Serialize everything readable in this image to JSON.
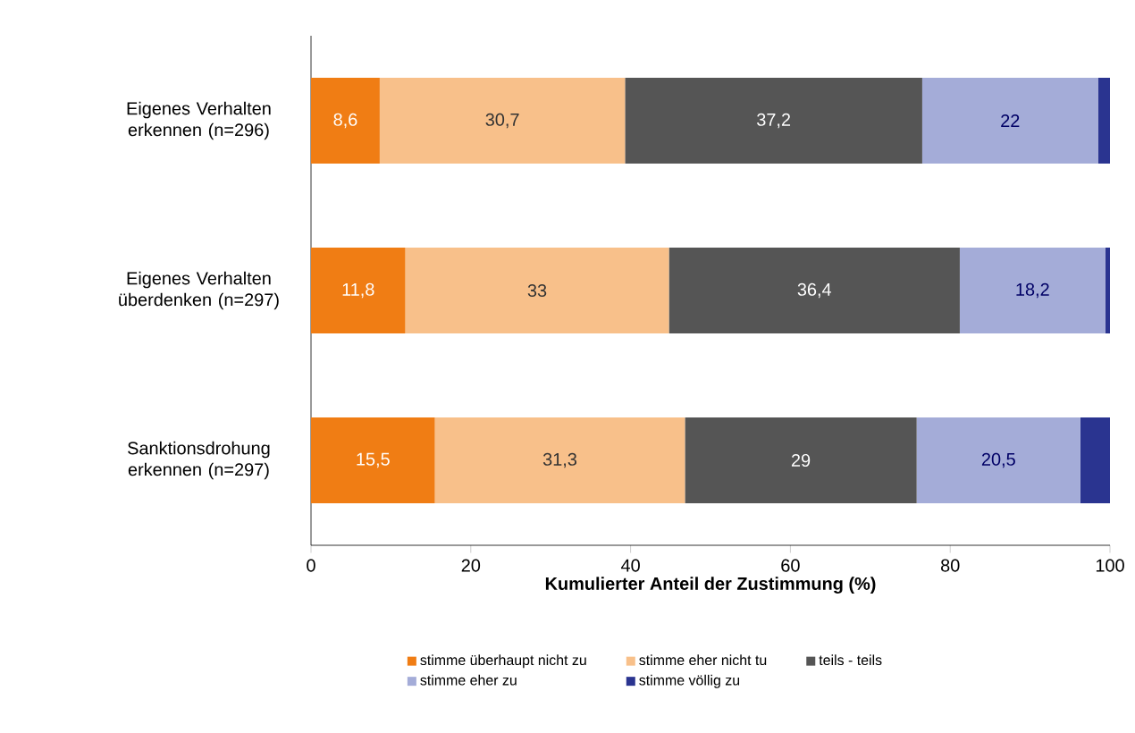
{
  "chart_data": {
    "type": "bar",
    "orientation": "horizontal",
    "stacked": true,
    "xlabel": "Kumulierter Anteil der Zustimmung (%)",
    "categories": [
      "Eigenes Verhalten erkennen (n=296)",
      "Eigenes Verhalten überdenken (n=297)",
      "Sanktionsdrohung erkennen (n=297)"
    ],
    "series": [
      {
        "name": "stimme überhaupt nicht zu",
        "color": "#f07d14",
        "values": [
          8.6,
          11.8,
          15.5
        ],
        "value_labels": [
          "8,6",
          "11,8",
          "15,5"
        ]
      },
      {
        "name": "stimme eher nicht tu",
        "color": "#f8c08a",
        "values": [
          30.7,
          33,
          31.3
        ],
        "value_labels": [
          "30,7",
          "33",
          "31,3"
        ]
      },
      {
        "name": "teils - teils",
        "color": "#555555",
        "values": [
          37.2,
          36.4,
          29
        ],
        "value_labels": [
          "37,2",
          "36,4",
          "29"
        ]
      },
      {
        "name": "stimme eher zu",
        "color": "#a4acd8",
        "values": [
          22,
          18.2,
          20.5
        ],
        "value_labels": [
          "22",
          "18,2",
          "20,5"
        ]
      },
      {
        "name": "stimme völlig zu",
        "color": "#2a3490",
        "values": [
          1.5,
          0.6,
          3.7
        ],
        "value_labels": [
          null,
          null,
          null
        ]
      }
    ],
    "xlim": [
      0,
      100
    ],
    "xticks": [
      0,
      20,
      40,
      60,
      80,
      100
    ],
    "legend": "bottom"
  }
}
